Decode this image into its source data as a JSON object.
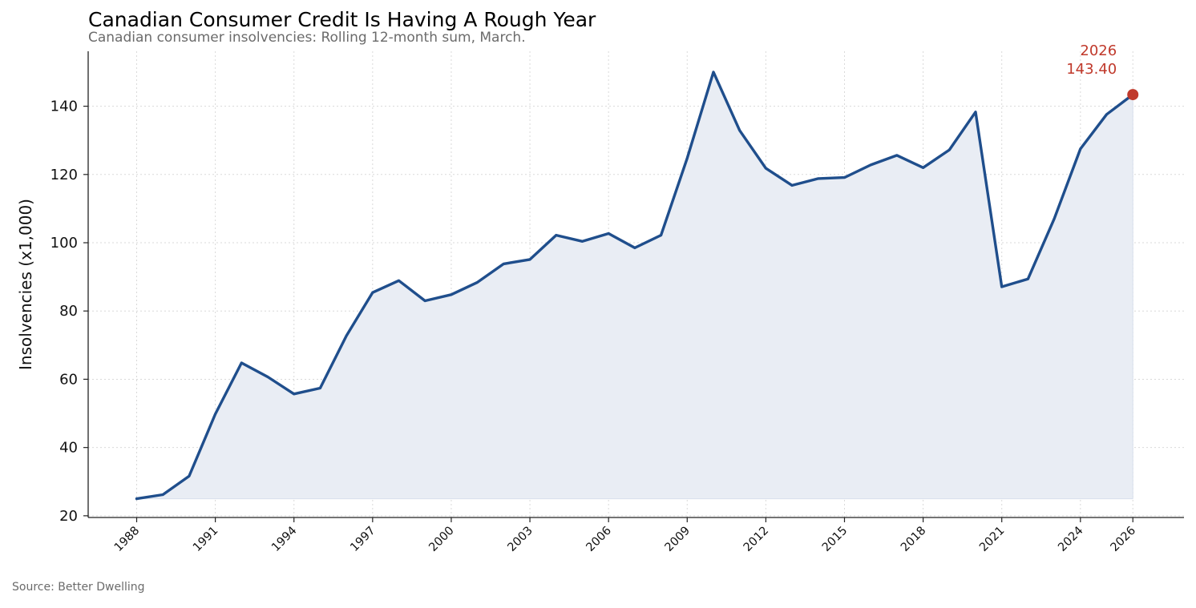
{
  "title": "Canadian Consumer Credit Is Having A Rough Year",
  "subtitle": "Canadian consumer insolvencies: Rolling 12-month sum, March.",
  "source": "Source: Better Dwelling",
  "colors": {
    "line": "#1f4e8c",
    "fill": "#e9edf4",
    "highlight": "#c0392b",
    "grid": "#d9d9d9",
    "axis": "#222222"
  },
  "chart_data": {
    "type": "area",
    "xlabel": "",
    "ylabel": "Insolvencies (x1,000)",
    "x": [
      1988,
      1989,
      1990,
      1991,
      1992,
      1993,
      1994,
      1995,
      1996,
      1997,
      1998,
      1999,
      2000,
      2001,
      2002,
      2003,
      2004,
      2005,
      2006,
      2007,
      2008,
      2009,
      2010,
      2011,
      2012,
      2013,
      2014,
      2015,
      2016,
      2017,
      2018,
      2019,
      2020,
      2021,
      2022,
      2023,
      2024,
      2025,
      2026
    ],
    "series": [
      {
        "values": [
          25.0,
          26.2,
          31.6,
          49.8,
          64.8,
          60.7,
          55.7,
          57.4,
          72.7,
          85.4,
          88.9,
          83.0,
          84.8,
          88.4,
          93.8,
          95.1,
          102.2,
          100.4,
          102.7,
          98.5,
          102.2,
          124.8,
          150.0,
          132.9,
          121.8,
          116.8,
          118.8,
          119.1,
          122.8,
          125.6,
          122.0,
          127.2,
          138.3,
          87.1,
          89.4,
          107.0,
          127.5,
          137.6,
          143.4
        ]
      }
    ],
    "xticks": [
      1988,
      1991,
      1994,
      1997,
      2000,
      2003,
      2006,
      2009,
      2012,
      2015,
      2018,
      2021,
      2024,
      2026
    ],
    "yticks": [
      20,
      40,
      60,
      80,
      100,
      120,
      140
    ],
    "xlim": [
      1986.15,
      2027.95
    ],
    "ylim": [
      19.5,
      156.1
    ],
    "grid": true,
    "legend": "none",
    "annotation": {
      "year": "2026",
      "value": "143.40"
    }
  }
}
